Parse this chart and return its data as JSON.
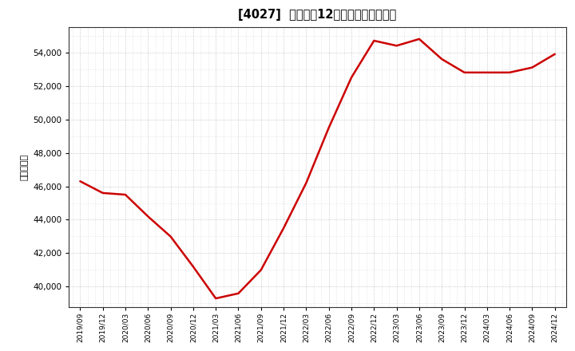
{
  "title": "[4027]  売上高の12か月移動合計の推移",
  "ylabel": "（百万円）",
  "line_color": "#cc0000",
  "background_color": "#ffffff",
  "plot_bg_color": "#ffffff",
  "grid_color": "#bbbbbb",
  "dates": [
    "2019/09",
    "2019/12",
    "2020/03",
    "2020/06",
    "2020/09",
    "2020/12",
    "2021/03",
    "2021/06",
    "2021/09",
    "2021/12",
    "2022/03",
    "2022/06",
    "2022/09",
    "2022/12",
    "2023/03",
    "2023/06",
    "2023/09",
    "2023/12",
    "2024/03",
    "2024/06",
    "2024/09",
    "2024/12"
  ],
  "values": [
    46300,
    45600,
    45500,
    44200,
    43000,
    41200,
    39300,
    39600,
    41000,
    43500,
    46200,
    49500,
    52500,
    54700,
    54400,
    54800,
    53600,
    52800,
    52800,
    52800,
    53100,
    53900
  ],
  "yticks": [
    40000,
    42000,
    44000,
    46000,
    48000,
    50000,
    52000,
    54000
  ],
  "ylim": [
    38800,
    55500
  ],
  "xtick_labels": [
    "2019/09",
    "2019/12",
    "2020/03",
    "2020/06",
    "2020/09",
    "2020/12",
    "2021/03",
    "2021/06",
    "2021/09",
    "2021/12",
    "2022/03",
    "2022/06",
    "2022/09",
    "2022/12",
    "2023/03",
    "2023/06",
    "2023/09",
    "2023/12",
    "2024/03",
    "2024/06",
    "2024/09",
    "2024/12"
  ]
}
